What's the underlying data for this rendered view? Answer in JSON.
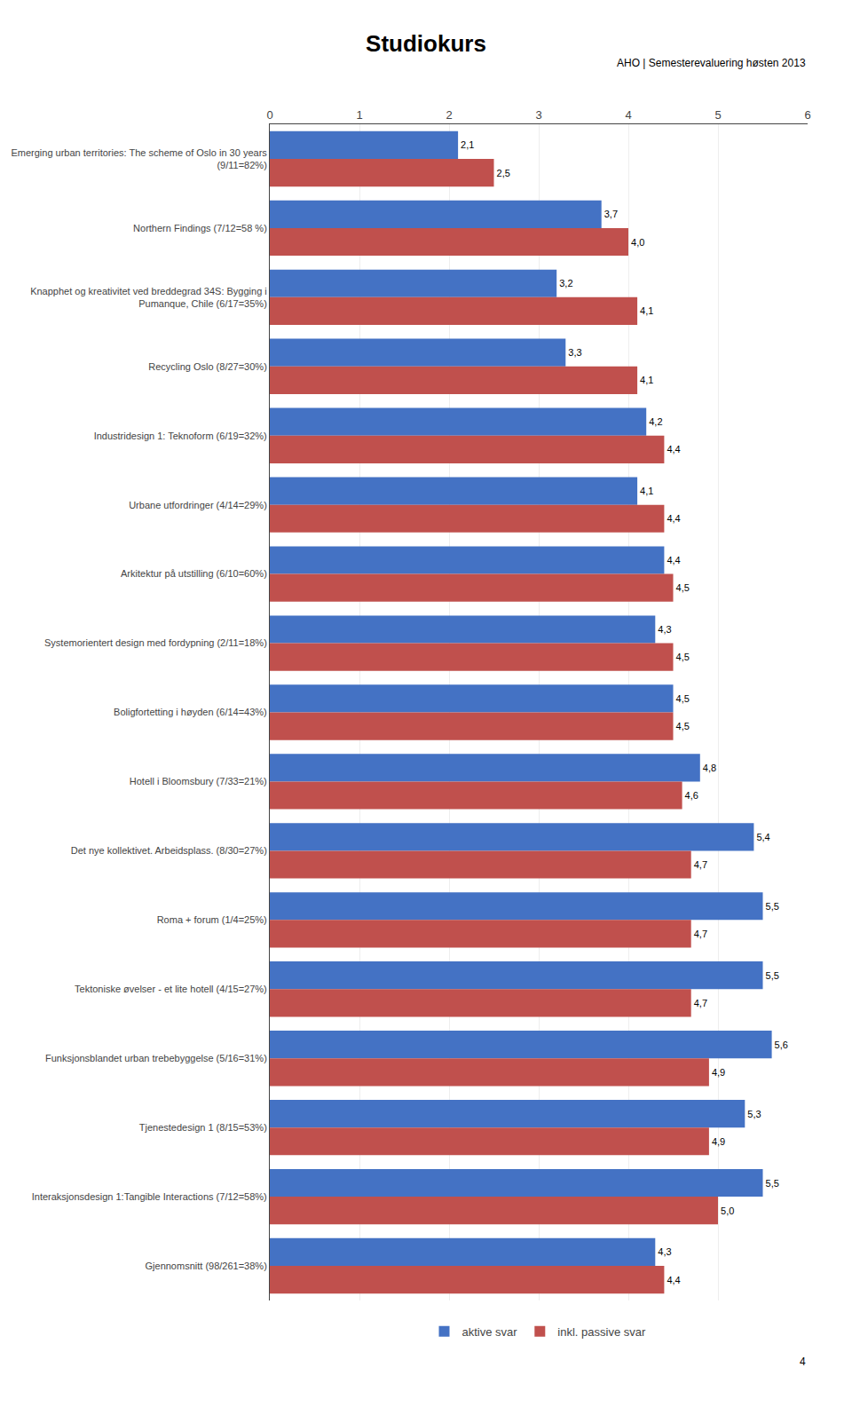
{
  "chart_data": {
    "type": "bar",
    "orientation": "horizontal",
    "title": "Studiokurs",
    "annotations": [
      "AHO | Semesterevaluering høsten 2013",
      "4"
    ],
    "categories": [
      "Emerging urban territories: The scheme of Oslo in 30 years\n(9/11=82%)",
      "Northern Findings (7/12=58 %)",
      "Knapphet og kreativitet ved breddegrad 34S: Bygging i\nPumanque, Chile (6/17=35%)",
      "Recycling Oslo (8/27=30%)",
      "Industridesign 1: Teknoform (6/19=32%)",
      "Urbane utfordringer (4/14=29%)",
      "Arkitektur på utstilling (6/10=60%)",
      "Systemorientert design med fordypning (2/11=18%)",
      "Boligfortetting i høyden (6/14=43%)",
      "Hotell i Bloomsbury (7/33=21%)",
      "Det nye kollektivet. Arbeidsplass. (8/30=27%)",
      "Roma + forum (1/4=25%)",
      "Tektoniske øvelser - et lite hotell (4/15=27%)",
      "Funksjonsblandet urban trebebyggelse (5/16=31%)",
      "Tjenestedesign 1 (8/15=53%)",
      "Interaksjonsdesign 1:Tangible Interactions (7/12=58%)",
      "Gjennomsnitt (98/261=38%)"
    ],
    "series": [
      {
        "name": "aktive svar",
        "color": "#4472C4",
        "values": [
          2.1,
          3.7,
          3.2,
          3.3,
          4.2,
          4.1,
          4.4,
          4.3,
          4.5,
          4.8,
          5.4,
          5.5,
          5.5,
          5.6,
          5.3,
          5.5,
          4.3
        ],
        "value_labels": [
          "2,1",
          "3,7",
          "3,2",
          "3,3",
          "4,2",
          "4,1",
          "4,4",
          "4,3",
          "4,5",
          "4,8",
          "5,4",
          "5,5",
          "5,5",
          "5,6",
          "5,3",
          "5,5",
          "4,3"
        ]
      },
      {
        "name": "inkl. passive svar",
        "color": "#C0504D",
        "values": [
          2.5,
          4.0,
          4.1,
          4.1,
          4.4,
          4.4,
          4.5,
          4.5,
          4.5,
          4.6,
          4.7,
          4.7,
          4.7,
          4.9,
          4.9,
          5.0,
          4.4
        ],
        "value_labels": [
          "2,5",
          "4,0",
          "4,1",
          "4,1",
          "4,4",
          "4,4",
          "4,5",
          "4,5",
          "4,5",
          "4,6",
          "4,7",
          "4,7",
          "4,7",
          "4,9",
          "4,9",
          "5,0",
          "4,4"
        ]
      }
    ],
    "xlim": [
      0,
      6
    ],
    "xticks": [
      0,
      1,
      2,
      3,
      4,
      5,
      6
    ],
    "grid": true,
    "legend": "bottom",
    "data_labels": true
  }
}
